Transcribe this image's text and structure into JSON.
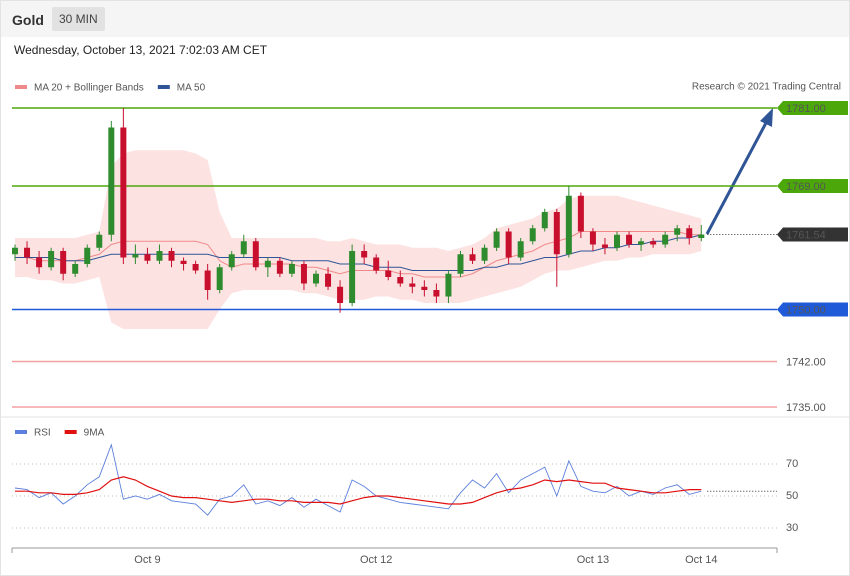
{
  "header": {
    "title": "Gold",
    "interval": "30 MIN",
    "timestamp": "Wednesday, October 13, 2021 7:02:03 AM CET",
    "credit": "Research © 2021 Trading Central"
  },
  "chart_data": [
    {
      "type": "candlestick",
      "up_color": "#2e8b2e",
      "down_color": "#c8102e",
      "ylim": [
        1734,
        1782
      ],
      "open": [
        1758.5,
        1759.5,
        1758,
        1756.5,
        1759,
        1755.5,
        1757,
        1759.5,
        1761.5,
        1778,
        1758,
        1758.5,
        1757.5,
        1759,
        1757.5,
        1757,
        1756,
        1753,
        1756.5,
        1758.5,
        1760.5,
        1756.5,
        1757.5,
        1755.5,
        1757,
        1754,
        1755.5,
        1753.5,
        1751,
        1759,
        1758,
        1756,
        1755,
        1754,
        1753.5,
        1753,
        1752,
        1755.5,
        1758.5,
        1757.5,
        1759.5,
        1762,
        1758,
        1760.5,
        1762.5,
        1765,
        1758.5,
        1767.5,
        1762,
        1760,
        1759.5,
        1761.5,
        1760,
        1760.5,
        1760,
        1761.5,
        1762.5,
        1761
      ],
      "high": [
        1760,
        1760.5,
        1759,
        1759.5,
        1759.5,
        1757.5,
        1760,
        1762,
        1779,
        1781,
        1760,
        1759.5,
        1760,
        1759.5,
        1758,
        1757.5,
        1757,
        1757,
        1759,
        1761.5,
        1761,
        1758,
        1758,
        1757.5,
        1757.5,
        1756,
        1756.5,
        1754.5,
        1760,
        1760,
        1758.5,
        1757.5,
        1756,
        1755,
        1754.5,
        1754,
        1756,
        1759,
        1759.5,
        1760,
        1762.5,
        1762.5,
        1761,
        1763,
        1765.5,
        1765.5,
        1769,
        1768,
        1762.5,
        1761,
        1762,
        1762,
        1761,
        1761,
        1762,
        1763,
        1763,
        1763
      ],
      "low": [
        1757.5,
        1757,
        1755.5,
        1756,
        1754.5,
        1755,
        1756.5,
        1759,
        1760.5,
        1757,
        1757,
        1757,
        1757,
        1756.5,
        1756,
        1755.5,
        1751.5,
        1752.5,
        1756,
        1758,
        1756,
        1755,
        1755,
        1755,
        1753,
        1753.5,
        1753,
        1749.5,
        1750.5,
        1757,
        1755.5,
        1754.5,
        1753.5,
        1752.5,
        1752,
        1751,
        1751,
        1755,
        1757,
        1757,
        1759,
        1757,
        1757.5,
        1760,
        1762,
        1753.5,
        1758,
        1761,
        1759,
        1758.5,
        1759,
        1759.5,
        1759,
        1759.5,
        1759.5,
        1760.5,
        1760,
        1760.5
      ],
      "close": [
        1759.5,
        1758,
        1756.5,
        1759,
        1755.5,
        1757,
        1759.5,
        1761.5,
        1778,
        1758,
        1758.5,
        1757.5,
        1759,
        1757.5,
        1757,
        1756,
        1753,
        1756.5,
        1758.5,
        1760.5,
        1756.5,
        1757.5,
        1755.5,
        1757,
        1754,
        1755.5,
        1753.5,
        1751,
        1759,
        1758,
        1756,
        1755,
        1754,
        1753.5,
        1753,
        1752,
        1755.5,
        1758.5,
        1757.5,
        1759.5,
        1762,
        1758,
        1760.5,
        1762.5,
        1765,
        1758.5,
        1767.5,
        1762,
        1760,
        1759.5,
        1761.5,
        1760,
        1760.5,
        1760,
        1761.5,
        1762.5,
        1761,
        1761.54
      ],
      "series": [
        {
          "name": "MA 20 + Bollinger Bands",
          "color": "#f08a8a",
          "band_color": "#fde2e2",
          "values": [
            1758,
            1758,
            1757.5,
            1757.5,
            1757.5,
            1757.5,
            1758,
            1758.5,
            1760,
            1760.5,
            1760.5,
            1760.5,
            1760.5,
            1760.5,
            1760.5,
            1760.5,
            1760,
            1757.5,
            1756.5,
            1757,
            1757,
            1757,
            1757,
            1757,
            1756.5,
            1756.5,
            1756,
            1755.5,
            1756,
            1756,
            1756,
            1756,
            1755.5,
            1755.5,
            1755,
            1755,
            1755,
            1755,
            1755.5,
            1756.5,
            1757.5,
            1758,
            1758.5,
            1759,
            1760,
            1760.5,
            1761,
            1762,
            1762,
            1762,
            1762,
            1762,
            1762,
            1762,
            1762,
            1762,
            1761.5,
            1761.5
          ],
          "upper": [
            1761,
            1761,
            1761,
            1761,
            1761,
            1761,
            1761.5,
            1762,
            1772,
            1774,
            1774.5,
            1774.5,
            1774.5,
            1774.5,
            1774.5,
            1774,
            1773,
            1765,
            1761,
            1761,
            1761,
            1761,
            1761,
            1761,
            1761,
            1761,
            1760.5,
            1760.5,
            1761,
            1760.5,
            1760,
            1760,
            1760,
            1759.5,
            1759.5,
            1759.5,
            1759,
            1759.5,
            1760,
            1761,
            1762.5,
            1763,
            1763.5,
            1764,
            1765,
            1765.5,
            1767,
            1767.5,
            1767.5,
            1767.5,
            1767.5,
            1767,
            1766.5,
            1766,
            1765.5,
            1765,
            1764.5,
            1764
          ],
          "lower": [
            1755,
            1755,
            1754.5,
            1754.5,
            1754,
            1754,
            1754.5,
            1755,
            1748,
            1747,
            1747,
            1747,
            1747,
            1747,
            1747,
            1747,
            1747,
            1750,
            1752.5,
            1753,
            1753,
            1753,
            1753,
            1753,
            1752.5,
            1752.5,
            1752,
            1751.5,
            1751.5,
            1751.5,
            1752,
            1752,
            1751.5,
            1751.5,
            1751,
            1751,
            1751,
            1751,
            1751.5,
            1752,
            1752.5,
            1753,
            1753.5,
            1754.5,
            1755.5,
            1756,
            1756,
            1756.5,
            1757,
            1757.5,
            1757.5,
            1758,
            1758,
            1758.5,
            1758.5,
            1758.5,
            1758.5,
            1759
          ]
        },
        {
          "name": "MA 50",
          "color": "#2f5597",
          "values": [
            1758,
            1758,
            1758,
            1758,
            1757.5,
            1757.5,
            1757.5,
            1758,
            1758.5,
            1758.5,
            1758.5,
            1758.5,
            1758.5,
            1758.5,
            1758.5,
            1758.5,
            1758.5,
            1758,
            1758,
            1758,
            1758,
            1758,
            1758,
            1757.5,
            1757.5,
            1757.5,
            1757.5,
            1757,
            1757,
            1757,
            1756.5,
            1756.5,
            1756.5,
            1756,
            1756,
            1756,
            1756,
            1756,
            1756,
            1756.5,
            1756.5,
            1757,
            1757,
            1757.5,
            1758,
            1758,
            1758.5,
            1759,
            1759,
            1759.5,
            1759.5,
            1760,
            1760,
            1760.5,
            1760.5,
            1761,
            1761,
            1761.5
          ]
        }
      ],
      "levels": [
        {
          "value": 1781,
          "label": "1781.00",
          "color": "#4ca80a",
          "line": "solid",
          "tag": true
        },
        {
          "value": 1769,
          "label": "1769.00",
          "color": "#4ca80a",
          "line": "solid",
          "tag": true
        },
        {
          "value": 1761.54,
          "label": "1761.54",
          "color": "#333333",
          "line": "dotted",
          "tag": true
        },
        {
          "value": 1750,
          "label": "1750.00",
          "color": "#1f5ad8",
          "line": "solid",
          "tag": true
        },
        {
          "value": 1742,
          "label": "1742.00",
          "color": "#f4a0a0",
          "text_color": "#cc0000",
          "line": "solid",
          "tag": false
        },
        {
          "value": 1735,
          "label": "1735.00",
          "color": "#f4a0a0",
          "text_color": "#cc0000",
          "line": "solid",
          "tag": false
        }
      ]
    },
    {
      "type": "line",
      "ylim": [
        18,
        82
      ],
      "yticks": [
        30,
        50,
        70
      ],
      "grid": true,
      "categories": [
        null,
        null,
        null,
        null,
        null,
        null,
        null,
        null,
        null,
        null,
        null,
        "Oct 9",
        null,
        null,
        null,
        null,
        null,
        null,
        null,
        null,
        null,
        null,
        null,
        null,
        null,
        null,
        null,
        null,
        null,
        null,
        "Oct 12",
        null,
        null,
        null,
        null,
        null,
        null,
        null,
        null,
        null,
        null,
        null,
        null,
        null,
        null,
        null,
        null,
        null,
        "Oct 13",
        null,
        null,
        null,
        null,
        null,
        null,
        null,
        null,
        "Oct 14"
      ],
      "series": [
        {
          "name": "RSI",
          "color": "#5b7fdc",
          "values": [
            55,
            54,
            49,
            52,
            45,
            50,
            57,
            62,
            82,
            48,
            50,
            48,
            51,
            47,
            46,
            45,
            38,
            48,
            50,
            57,
            45,
            47,
            44,
            49,
            43,
            48,
            44,
            40,
            60,
            56,
            50,
            48,
            46,
            45,
            44,
            43,
            42,
            52,
            60,
            55,
            64,
            52,
            60,
            64,
            68,
            50,
            72,
            56,
            53,
            52,
            56,
            50,
            53,
            51,
            55,
            57,
            51,
            53
          ]
        },
        {
          "name": "9MA",
          "color": "#e01010",
          "values": [
            53,
            53,
            52,
            52,
            51,
            51,
            52,
            54,
            60,
            62,
            60,
            56,
            53,
            50,
            49,
            49,
            48,
            47,
            46,
            47,
            48,
            48,
            47,
            47,
            46,
            46,
            46,
            45,
            47,
            49,
            50,
            50,
            49,
            48,
            47,
            46,
            45,
            45,
            46,
            49,
            52,
            54,
            55,
            57,
            60,
            59,
            60,
            59,
            58,
            58,
            55,
            54,
            53,
            52,
            52,
            53,
            54,
            54
          ]
        }
      ]
    }
  ]
}
